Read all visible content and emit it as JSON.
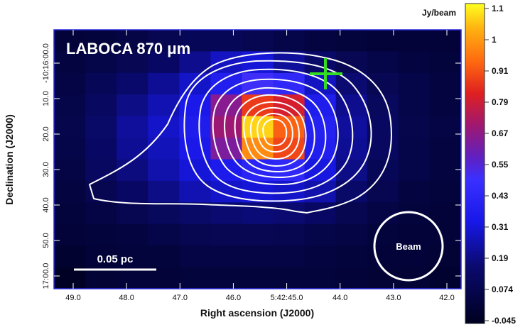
{
  "chart_data": {
    "type": "heatmap",
    "title": "LABOCA 870 μm",
    "xlabel": "Right ascension (J2000)",
    "ylabel": "Declination (J2000)",
    "x_ticks": [
      "49.0",
      "48.0",
      "47.0",
      "46.0",
      "5:42:45.0",
      "44.0",
      "43.0",
      "42.0"
    ],
    "y_ticks": [
      "10:00.0",
      "10.0",
      "20.0",
      "30.0",
      "40.0",
      "50.0",
      "17:00.0"
    ],
    "y_ticks_prefixed": [
      "-10:16:00.0",
      "10.0",
      "20.0",
      "30.0",
      "40.0",
      "50.0",
      "17:00.0"
    ],
    "colorbar": {
      "unit": "Jy/beam",
      "min": -0.045,
      "max": 1.1,
      "ticks": [
        "1.1",
        "1",
        "0.91",
        "0.79",
        "0.67",
        "0.55",
        "0.43",
        "0.31",
        "0.19",
        "0.074",
        "-0.045"
      ]
    },
    "grid": [
      [
        0.02,
        0.03,
        0.05,
        0.08,
        0.1,
        0.1,
        0.08,
        0.06,
        0.04,
        0.03,
        0.02,
        0.02,
        0.02
      ],
      [
        0.04,
        0.06,
        0.09,
        0.13,
        0.2,
        0.27,
        0.3,
        0.22,
        0.14,
        0.09,
        0.06,
        0.04,
        0.03
      ],
      [
        0.05,
        0.1,
        0.15,
        0.21,
        0.28,
        0.36,
        0.48,
        0.42,
        0.27,
        0.16,
        0.09,
        0.06,
        0.04
      ],
      [
        0.06,
        0.12,
        0.19,
        0.25,
        0.33,
        0.62,
        0.82,
        0.76,
        0.35,
        0.2,
        0.11,
        0.06,
        0.04
      ],
      [
        0.07,
        0.14,
        0.22,
        0.28,
        0.35,
        0.66,
        1.05,
        0.88,
        0.38,
        0.22,
        0.12,
        0.07,
        0.05
      ],
      [
        0.06,
        0.13,
        0.21,
        0.26,
        0.33,
        0.6,
        0.95,
        0.84,
        0.36,
        0.21,
        0.12,
        0.06,
        0.04
      ],
      [
        0.05,
        0.12,
        0.18,
        0.24,
        0.3,
        0.34,
        0.4,
        0.42,
        0.31,
        0.19,
        0.1,
        0.06,
        0.04
      ],
      [
        0.04,
        0.08,
        0.13,
        0.19,
        0.25,
        0.28,
        0.3,
        0.28,
        0.24,
        0.14,
        0.08,
        0.04,
        0.03
      ],
      [
        0.03,
        0.05,
        0.08,
        0.11,
        0.14,
        0.16,
        0.17,
        0.16,
        0.13,
        0.08,
        0.05,
        0.03,
        0.02
      ],
      [
        0.02,
        0.03,
        0.04,
        0.06,
        0.08,
        0.09,
        0.09,
        0.08,
        0.06,
        0.05,
        0.03,
        0.02,
        0.02
      ],
      [
        0.0,
        0.02,
        0.03,
        0.03,
        0.05,
        0.05,
        0.05,
        0.05,
        0.04,
        0.03,
        0.02,
        0.02,
        0.01
      ],
      [
        -0.03,
        0.01,
        0.02,
        0.02,
        0.03,
        0.03,
        0.03,
        0.03,
        0.03,
        0.02,
        0.01,
        0.01,
        0.0
      ]
    ],
    "annotations": {
      "scale_bar_label": "0.05 pc",
      "beam_label": "Beam",
      "marker": "green cross"
    },
    "colors": {
      "contour": "#ffffff",
      "marker": "#33dd22",
      "frame": "#2a2adc"
    }
  }
}
